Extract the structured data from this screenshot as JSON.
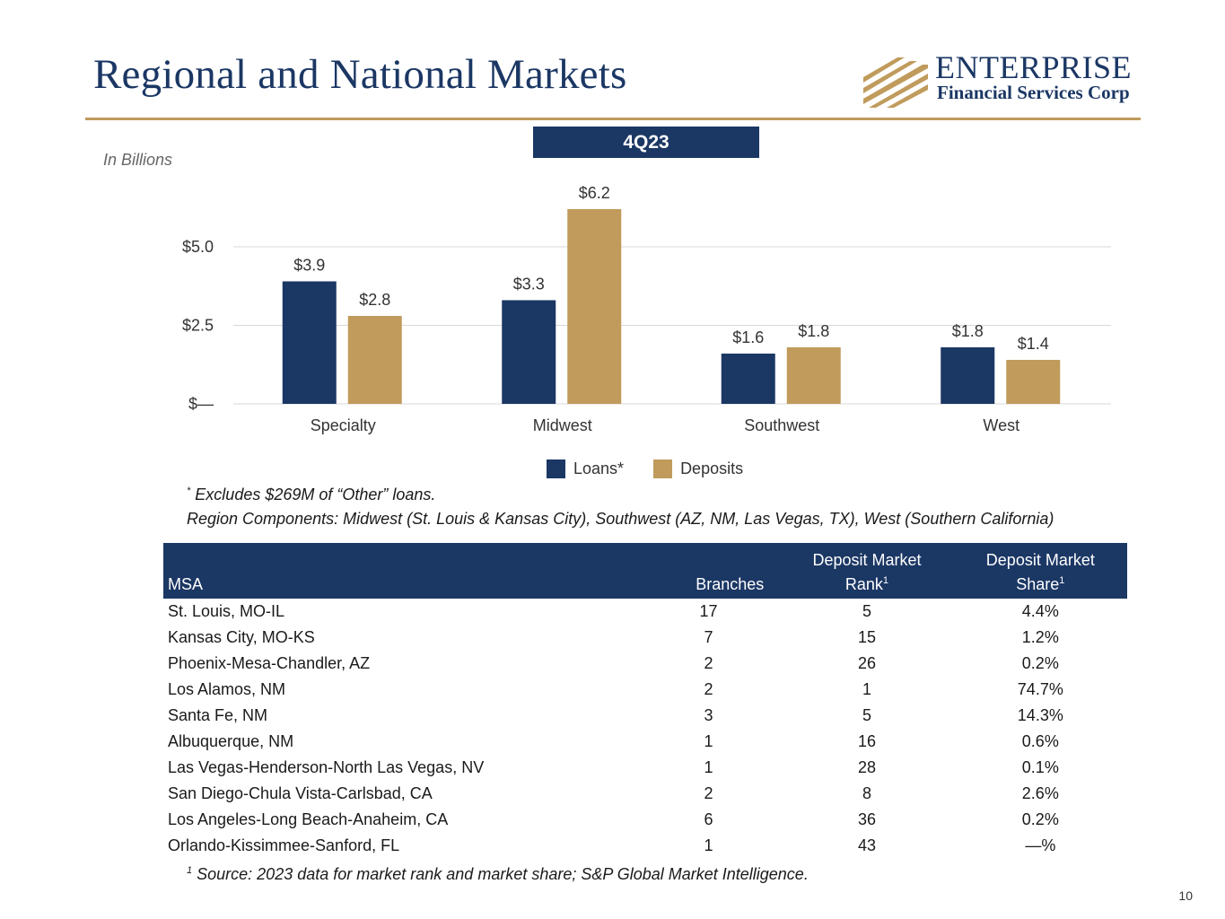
{
  "header": {
    "title": "Regional and National Markets"
  },
  "logo": {
    "line1": "ENTERPRISE",
    "line2": "Financial Services Corp"
  },
  "chart_header": {
    "period": "4Q23",
    "units": "In Billions"
  },
  "chart_data": {
    "type": "bar",
    "title": "4Q23",
    "ylabel": "In Billions",
    "categories": [
      "Specialty",
      "Midwest",
      "Southwest",
      "West"
    ],
    "series": [
      {
        "name": "Loans*",
        "color": "#1b3764",
        "values": [
          3.9,
          3.3,
          1.6,
          1.8
        ],
        "labels": [
          "$3.9",
          "$3.3",
          "$1.6",
          "$1.8"
        ]
      },
      {
        "name": "Deposits",
        "color": "#c09b5c",
        "values": [
          2.8,
          6.2,
          1.8,
          1.4
        ],
        "labels": [
          "$2.8",
          "$6.2",
          "$1.8",
          "$1.4"
        ]
      }
    ],
    "yticks": [
      0,
      2.5,
      5.0
    ],
    "ytick_labels": [
      "$—",
      "$2.5",
      "$5.0"
    ],
    "ylim": [
      0,
      6.5
    ],
    "grid": true,
    "legend": "bottom-center"
  },
  "notes": {
    "excludes_mark": "*",
    "excludes": "Excludes $269M of “Other” loans.",
    "regions": "Region Components: Midwest (St. Louis & Kansas City), Southwest (AZ, NM, Las Vegas, TX), West (Southern California)",
    "source_mark": "1",
    "source": "Source: 2023 data for market rank and market share; S&P Global Market Intelligence."
  },
  "table": {
    "headers": {
      "msa": "MSA",
      "branches": "Branches",
      "rank_line1": "Deposit Market",
      "rank_line2": "Rank",
      "share_line1": "Deposit Market",
      "share_line2": "Share",
      "footnote_mark": "1"
    },
    "rows": [
      {
        "msa": "St. Louis, MO-IL",
        "branches": "17",
        "rank": "5",
        "share": "4.4%"
      },
      {
        "msa": "Kansas City, MO-KS",
        "branches": "7",
        "rank": "15",
        "share": "1.2%"
      },
      {
        "msa": "Phoenix-Mesa-Chandler, AZ",
        "branches": "2",
        "rank": "26",
        "share": "0.2%"
      },
      {
        "msa": "Los Alamos, NM",
        "branches": "2",
        "rank": "1",
        "share": "74.7%"
      },
      {
        "msa": "Santa Fe, NM",
        "branches": "3",
        "rank": "5",
        "share": "14.3%"
      },
      {
        "msa": "Albuquerque, NM",
        "branches": "1",
        "rank": "16",
        "share": "0.6%"
      },
      {
        "msa": "Las Vegas-Henderson-North Las Vegas, NV",
        "branches": "1",
        "rank": "28",
        "share": "0.1%"
      },
      {
        "msa": "San Diego-Chula Vista-Carlsbad, CA",
        "branches": "2",
        "rank": "8",
        "share": "2.6%"
      },
      {
        "msa": "Los Angeles-Long Beach-Anaheim, CA",
        "branches": "6",
        "rank": "36",
        "share": "0.2%"
      },
      {
        "msa": "Orlando-Kissimmee-Sanford, FL",
        "branches": "1",
        "rank": "43",
        "share": "—%"
      }
    ]
  },
  "footer": {
    "page_number": "10"
  }
}
